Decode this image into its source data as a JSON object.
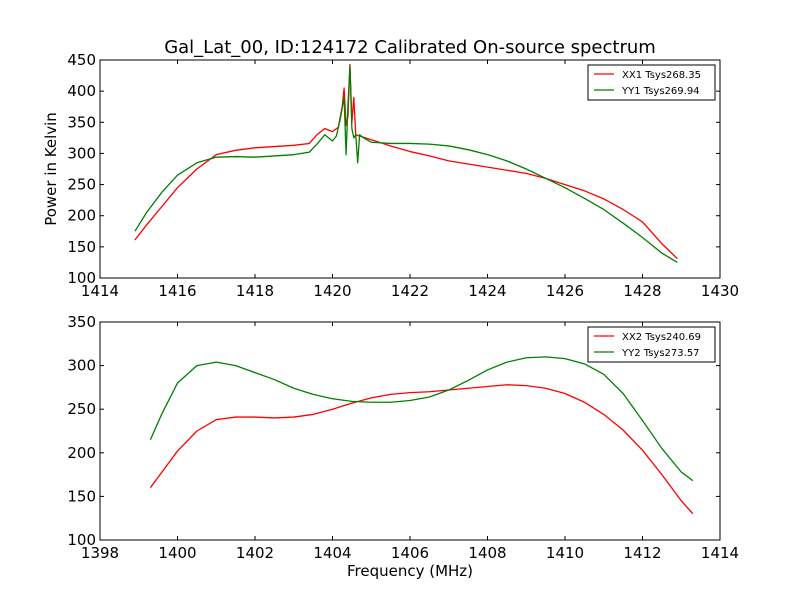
{
  "figure": {
    "title": "Gal_Lat_00, ID:124172 Calibrated On-source spectrum"
  },
  "chart_data": [
    {
      "type": "line",
      "title": "Gal_Lat_00, ID:124172 Calibrated On-source spectrum",
      "xlabel": "",
      "ylabel": "Power in Kelvin",
      "xlim": [
        1414,
        1430
      ],
      "ylim": [
        100,
        450
      ],
      "xticks": [
        1414,
        1416,
        1418,
        1420,
        1422,
        1424,
        1426,
        1428,
        1430
      ],
      "yticks": [
        100,
        150,
        200,
        250,
        300,
        350,
        400,
        450
      ],
      "grid": false,
      "legend_position": "top-right",
      "series": [
        {
          "name": "XX1 Tsys268.35",
          "color": "#ff0000",
          "x": [
            1414.9,
            1415.2,
            1415.6,
            1416.0,
            1416.5,
            1417.0,
            1417.5,
            1418.0,
            1418.5,
            1419.0,
            1419.4,
            1419.6,
            1419.8,
            1420.0,
            1420.15,
            1420.25,
            1420.3,
            1420.35,
            1420.4,
            1420.45,
            1420.5,
            1420.55,
            1420.6,
            1420.7,
            1420.8,
            1421.0,
            1421.5,
            1422.0,
            1422.5,
            1423.0,
            1423.5,
            1424.0,
            1424.5,
            1425.0,
            1425.5,
            1426.0,
            1426.5,
            1427.0,
            1427.5,
            1428.0,
            1428.5,
            1428.9
          ],
          "values": [
            161,
            185,
            215,
            245,
            275,
            298,
            305,
            309,
            311,
            313,
            316,
            330,
            340,
            335,
            342,
            375,
            405,
            345,
            360,
            443,
            350,
            390,
            330,
            328,
            326,
            322,
            312,
            303,
            296,
            288,
            283,
            278,
            273,
            268,
            260,
            250,
            240,
            227,
            210,
            190,
            155,
            131
          ]
        },
        {
          "name": "YY1 Tsys269.94",
          "color": "#008000",
          "x": [
            1414.9,
            1415.2,
            1415.6,
            1416.0,
            1416.5,
            1417.0,
            1417.5,
            1418.0,
            1418.5,
            1419.0,
            1419.4,
            1419.6,
            1419.8,
            1420.0,
            1420.1,
            1420.2,
            1420.3,
            1420.35,
            1420.4,
            1420.45,
            1420.5,
            1420.55,
            1420.6,
            1420.65,
            1420.7,
            1420.8,
            1421.0,
            1421.5,
            1422.0,
            1422.5,
            1423.0,
            1423.5,
            1424.0,
            1424.5,
            1425.0,
            1425.5,
            1426.0,
            1426.5,
            1427.0,
            1427.5,
            1428.0,
            1428.5,
            1428.9
          ],
          "values": [
            175,
            205,
            238,
            265,
            285,
            294,
            295,
            294,
            296,
            298,
            302,
            315,
            330,
            320,
            328,
            355,
            390,
            298,
            380,
            440,
            340,
            325,
            330,
            285,
            330,
            325,
            318,
            316,
            316,
            315,
            312,
            306,
            298,
            288,
            275,
            260,
            245,
            228,
            210,
            188,
            165,
            140,
            125
          ]
        }
      ]
    },
    {
      "type": "line",
      "title": "",
      "xlabel": "Frequency (MHz)",
      "ylabel": "",
      "xlim": [
        1398,
        1414
      ],
      "ylim": [
        100,
        350
      ],
      "xticks": [
        1398,
        1400,
        1402,
        1404,
        1406,
        1408,
        1410,
        1412,
        1414
      ],
      "yticks": [
        100,
        150,
        200,
        250,
        300,
        350
      ],
      "grid": false,
      "legend_position": "top-right",
      "series": [
        {
          "name": "XX2 Tsys240.69",
          "color": "#ff0000",
          "x": [
            1399.3,
            1399.6,
            1400.0,
            1400.5,
            1401.0,
            1401.5,
            1402.0,
            1402.5,
            1403.0,
            1403.5,
            1404.0,
            1404.5,
            1405.0,
            1405.5,
            1406.0,
            1406.5,
            1407.0,
            1407.5,
            1408.0,
            1408.5,
            1409.0,
            1409.5,
            1410.0,
            1410.5,
            1411.0,
            1411.5,
            1412.0,
            1412.5,
            1413.0,
            1413.3
          ],
          "values": [
            160,
            178,
            202,
            225,
            238,
            241,
            241,
            240,
            241,
            244,
            250,
            257,
            263,
            267,
            269,
            270,
            272,
            274,
            276,
            278,
            277,
            274,
            268,
            258,
            244,
            226,
            203,
            175,
            145,
            130
          ]
        },
        {
          "name": "YY2 Tsys273.57",
          "color": "#008000",
          "x": [
            1399.3,
            1399.6,
            1400.0,
            1400.5,
            1401.0,
            1401.5,
            1402.0,
            1402.5,
            1403.0,
            1403.5,
            1404.0,
            1404.5,
            1405.0,
            1405.5,
            1406.0,
            1406.5,
            1407.0,
            1407.5,
            1408.0,
            1408.5,
            1409.0,
            1409.5,
            1410.0,
            1410.5,
            1411.0,
            1411.5,
            1412.0,
            1412.5,
            1413.0,
            1413.3
          ],
          "values": [
            215,
            245,
            280,
            300,
            304,
            300,
            292,
            284,
            274,
            267,
            262,
            259,
            258,
            258,
            260,
            264,
            272,
            283,
            295,
            304,
            309,
            310,
            308,
            302,
            290,
            268,
            237,
            205,
            178,
            168
          ]
        }
      ]
    }
  ]
}
